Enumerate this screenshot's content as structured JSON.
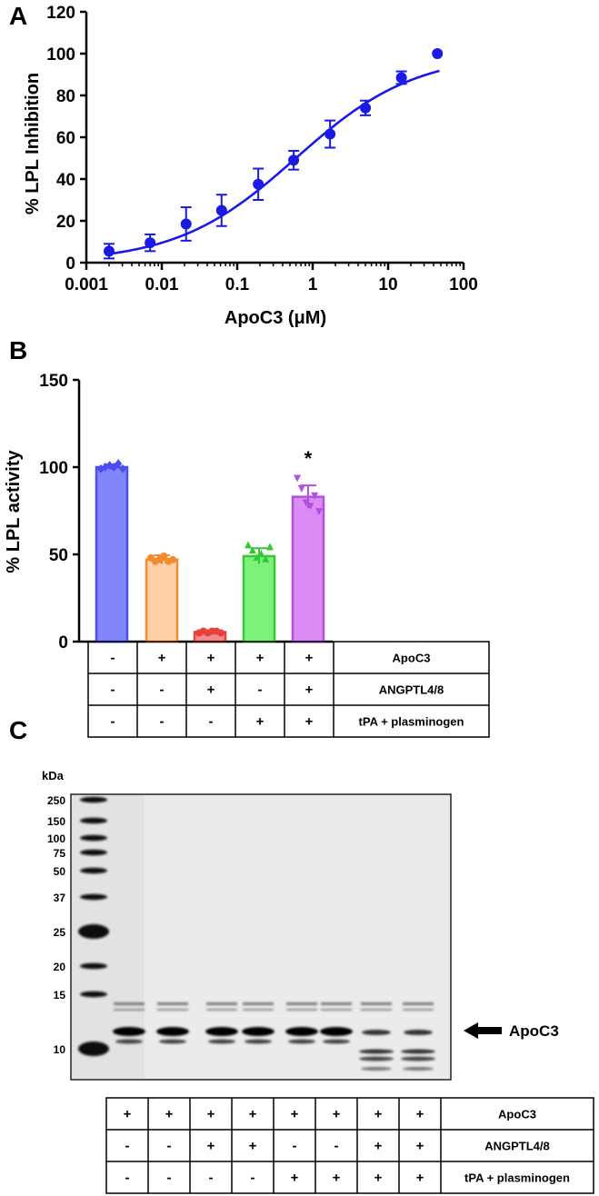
{
  "panel_labels": [
    "A",
    "B",
    "C"
  ],
  "colors": {
    "curve": "#1a1ae6",
    "bars": [
      "#4a4df0",
      "#f28a2e",
      "#e8413c",
      "#36c736",
      "#b14fe0"
    ],
    "bar_fills": [
      "#8286fb",
      "#fdd0a6",
      "#f28c8c",
      "#7df27a",
      "#dc8af4"
    ],
    "gel_bg": "#ebebeb"
  },
  "chart_data": [
    {
      "type": "scatter",
      "panel": "A",
      "xlabel": "ApoC3 (μM)",
      "ylabel": "% LPL Inhibition",
      "xscale": "log",
      "xlim": [
        0.001,
        100
      ],
      "ylim": [
        0,
        120
      ],
      "xticks": [
        "0.001",
        "0.01",
        "0.1",
        "1",
        "10",
        "100"
      ],
      "yticks": [
        "0",
        "20",
        "40",
        "60",
        "80",
        "100",
        "120"
      ],
      "points": [
        {
          "x": 0.002,
          "y": 5.5,
          "err": 3.5
        },
        {
          "x": 0.007,
          "y": 9.5,
          "err": 4
        },
        {
          "x": 0.021,
          "y": 18.5,
          "err": 8
        },
        {
          "x": 0.062,
          "y": 25,
          "err": 7.5
        },
        {
          "x": 0.19,
          "y": 37.5,
          "err": 7.5
        },
        {
          "x": 0.56,
          "y": 49,
          "err": 4.5
        },
        {
          "x": 1.7,
          "y": 61.5,
          "err": 6.5
        },
        {
          "x": 5,
          "y": 74,
          "err": 3.5
        },
        {
          "x": 15,
          "y": 88.5,
          "err": 3
        },
        {
          "x": 45,
          "y": 100,
          "err": 0
        }
      ],
      "fit": {
        "model": "four-parameter logistic",
        "bottom": 0,
        "top": 100,
        "ic50": 0.6,
        "hill": 0.55
      }
    },
    {
      "type": "bar",
      "panel": "B",
      "ylabel": "% LPL activity",
      "ylim": [
        0,
        150
      ],
      "yticks": [
        "0",
        "50",
        "100",
        "150"
      ],
      "values": [
        100,
        47,
        5.5,
        49,
        83
      ],
      "errors": [
        1.5,
        2.5,
        1,
        4.5,
        6.5
      ],
      "markers": [
        "diamond",
        "circle",
        "circle",
        "triangle-up",
        "triangle-down"
      ],
      "replicates": [
        [
          99,
          100,
          101,
          100,
          102,
          99
        ],
        [
          48,
          46,
          47,
          49,
          46,
          47
        ],
        [
          5,
          6,
          5,
          6,
          6,
          5
        ],
        [
          55,
          52,
          48,
          50,
          47,
          54
        ],
        [
          94,
          88,
          80,
          78,
          84,
          75
        ]
      ],
      "annotations": [
        "",
        "",
        "",
        "",
        "*"
      ]
    }
  ],
  "panel_b_table": {
    "row_labels": [
      "ApoC3",
      "ANGPTL4/8",
      "tPA + plasminogen"
    ],
    "rows": [
      [
        "-",
        "+",
        "+",
        "+",
        "+"
      ],
      [
        "-",
        "-",
        "+",
        "-",
        "+"
      ],
      [
        "-",
        "-",
        "-",
        "+",
        "+"
      ]
    ]
  },
  "gel": {
    "kda_label": "kDa",
    "markers": [
      {
        "label": "250",
        "kda": 250
      },
      {
        "label": "150",
        "kda": 150
      },
      {
        "label": "100",
        "kda": 100
      },
      {
        "label": "75",
        "kda": 75
      },
      {
        "label": "50",
        "kda": 50
      },
      {
        "label": "37",
        "kda": 37
      },
      {
        "label": "25",
        "kda": 25
      },
      {
        "label": "20",
        "kda": 20
      },
      {
        "label": "15",
        "kda": 15
      },
      {
        "label": "10",
        "kda": 10
      }
    ],
    "band_label": "ApoC3",
    "lanes": [
      {
        "apoc3": "+",
        "angptl": "-",
        "tpa": "-",
        "cleaved": false
      },
      {
        "apoc3": "+",
        "angptl": "-",
        "tpa": "-",
        "cleaved": false
      },
      {
        "apoc3": "+",
        "angptl": "+",
        "tpa": "-",
        "cleaved": false
      },
      {
        "apoc3": "+",
        "angptl": "+",
        "tpa": "-",
        "cleaved": false
      },
      {
        "apoc3": "+",
        "angptl": "-",
        "tpa": "+",
        "cleaved": false
      },
      {
        "apoc3": "+",
        "angptl": "-",
        "tpa": "+",
        "cleaved": false
      },
      {
        "apoc3": "+",
        "angptl": "+",
        "tpa": "+",
        "cleaved": true
      },
      {
        "apoc3": "+",
        "angptl": "+",
        "tpa": "+",
        "cleaved": true
      }
    ],
    "table": {
      "row_labels": [
        "ApoC3",
        "ANGPTL4/8",
        "tPA + plasminogen"
      ],
      "rows": [
        [
          "+",
          "+",
          "+",
          "+",
          "+",
          "+",
          "+",
          "+"
        ],
        [
          "-",
          "-",
          "+",
          "+",
          "-",
          "-",
          "+",
          "+"
        ],
        [
          "-",
          "-",
          "-",
          "-",
          "+",
          "+",
          "+",
          "+"
        ]
      ]
    }
  }
}
